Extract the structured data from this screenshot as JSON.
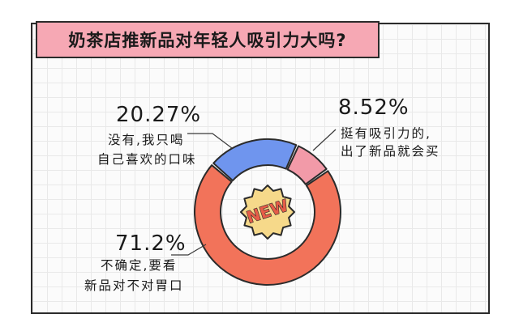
{
  "title": "奶茶店推新品对年轻人吸引力大吗?",
  "chart_data": {
    "type": "pie",
    "donut": true,
    "slices": [
      {
        "pct_text": "8.52%",
        "value": 8.52,
        "line1": "挺有吸引力的,",
        "line2": "出了新品就会买",
        "color": "#f29aa8"
      },
      {
        "pct_text": "71.2%",
        "value": 71.2,
        "line1": "不确定,要看",
        "line2": "新品对不对胃口",
        "color": "#f2735a"
      },
      {
        "pct_text": "20.27%",
        "value": 20.27,
        "line1": "没有,我只喝",
        "line2": "自己喜欢的口味",
        "color": "#6f95ee"
      }
    ],
    "center_badge": "NEW",
    "colors": {
      "badge_fill": "#f6d98a",
      "badge_text": "#e65d48",
      "stroke": "#2b2b2b"
    }
  }
}
